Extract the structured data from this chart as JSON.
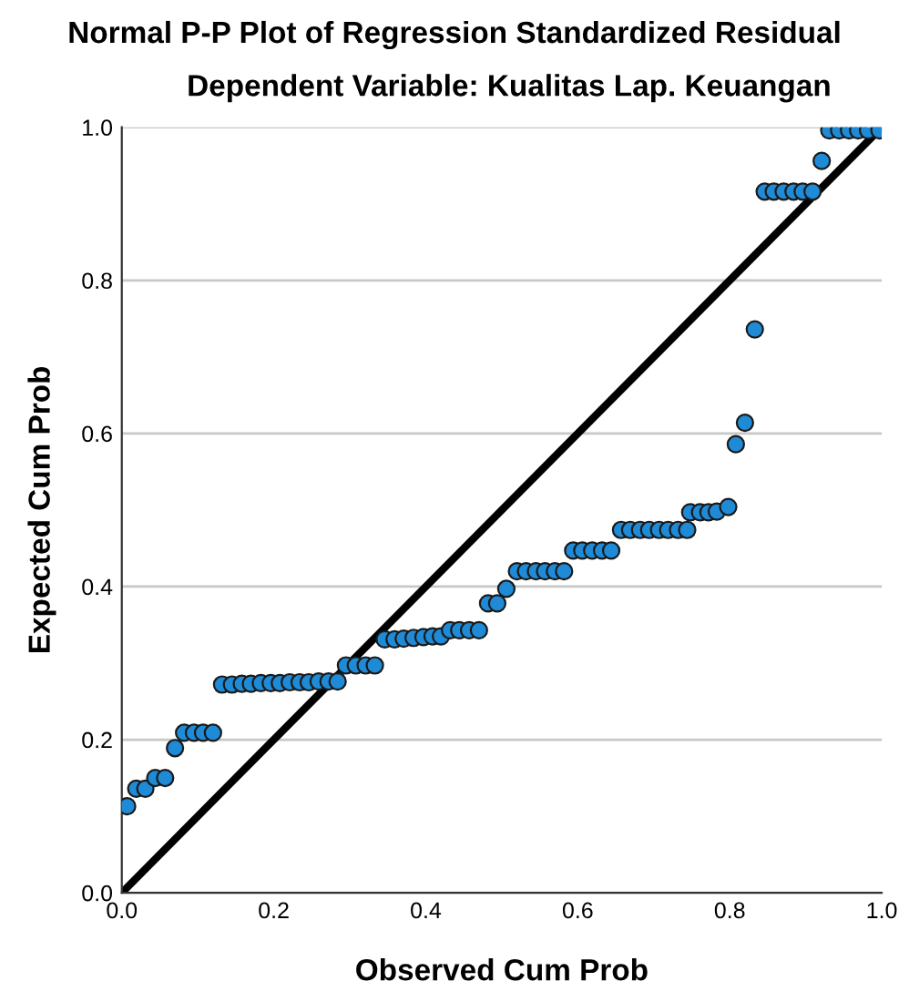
{
  "chart_data": {
    "type": "scatter",
    "title": "Normal P-P Plot of Regression Standardized Residual",
    "subtitle": "Dependent Variable: Kualitas Lap. Keuangan",
    "xlabel": "Observed Cum Prob",
    "ylabel": "Expected Cum Prob",
    "series": [
      {
        "color": "#1f8ad6",
        "x": [
          0.007,
          0.019,
          0.031,
          0.044,
          0.057,
          0.07,
          0.082,
          0.095,
          0.107,
          0.12,
          0.132,
          0.145,
          0.158,
          0.17,
          0.183,
          0.196,
          0.208,
          0.221,
          0.234,
          0.246,
          0.259,
          0.272,
          0.284,
          0.295,
          0.308,
          0.321,
          0.333,
          0.346,
          0.359,
          0.371,
          0.384,
          0.397,
          0.409,
          0.42,
          0.432,
          0.444,
          0.457,
          0.47,
          0.482,
          0.494,
          0.506,
          0.52,
          0.532,
          0.545,
          0.557,
          0.57,
          0.582,
          0.594,
          0.606,
          0.619,
          0.632,
          0.644,
          0.657,
          0.669,
          0.682,
          0.694,
          0.707,
          0.719,
          0.732,
          0.744,
          0.748,
          0.761,
          0.772,
          0.783,
          0.798,
          0.808,
          0.82,
          0.833,
          0.846,
          0.858,
          0.871,
          0.884,
          0.896,
          0.909,
          0.921,
          0.931,
          0.944,
          0.957,
          0.969,
          0.982,
          0.997
        ],
        "values": [
          0.113,
          0.136,
          0.136,
          0.15,
          0.15,
          0.189,
          0.209,
          0.209,
          0.209,
          0.209,
          0.272,
          0.272,
          0.273,
          0.273,
          0.274,
          0.274,
          0.274,
          0.275,
          0.275,
          0.275,
          0.276,
          0.276,
          0.276,
          0.297,
          0.297,
          0.297,
          0.297,
          0.331,
          0.331,
          0.332,
          0.333,
          0.334,
          0.335,
          0.335,
          0.343,
          0.343,
          0.343,
          0.343,
          0.378,
          0.378,
          0.397,
          0.42,
          0.42,
          0.42,
          0.42,
          0.42,
          0.42,
          0.447,
          0.447,
          0.447,
          0.447,
          0.447,
          0.474,
          0.474,
          0.474,
          0.474,
          0.474,
          0.474,
          0.474,
          0.474,
          0.497,
          0.497,
          0.497,
          0.498,
          0.504,
          0.586,
          0.614,
          0.736,
          0.916,
          0.916,
          0.916,
          0.916,
          0.916,
          0.916,
          0.956,
          0.996,
          0.996,
          0.996,
          0.996,
          0.996,
          0.996
        ]
      },
      {
        "type": "line",
        "color": "#000000",
        "x": [
          0,
          1
        ],
        "values": [
          0,
          1
        ],
        "line_style": "solid",
        "marker": "none"
      }
    ],
    "xlim": [
      0,
      1
    ],
    "ylim": [
      0,
      1
    ],
    "xticks": [
      {
        "value": 0,
        "label": "0.0"
      },
      {
        "value": 0.2,
        "label": "0.2"
      },
      {
        "value": 0.4,
        "label": "0.4"
      },
      {
        "value": 0.6,
        "label": "0.6"
      },
      {
        "value": 0.8,
        "label": "0.8"
      },
      {
        "value": 1,
        "label": "1.0"
      }
    ],
    "yticks": [
      {
        "value": 0,
        "label": "0.0"
      },
      {
        "value": 0.2,
        "label": "0.2"
      },
      {
        "value": 0.4,
        "label": "0.4"
      },
      {
        "value": 0.6,
        "label": "0.6"
      },
      {
        "value": 0.8,
        "label": "0.8"
      },
      {
        "value": 1,
        "label": "1.0"
      }
    ],
    "grid": "y",
    "marker": "circle"
  }
}
